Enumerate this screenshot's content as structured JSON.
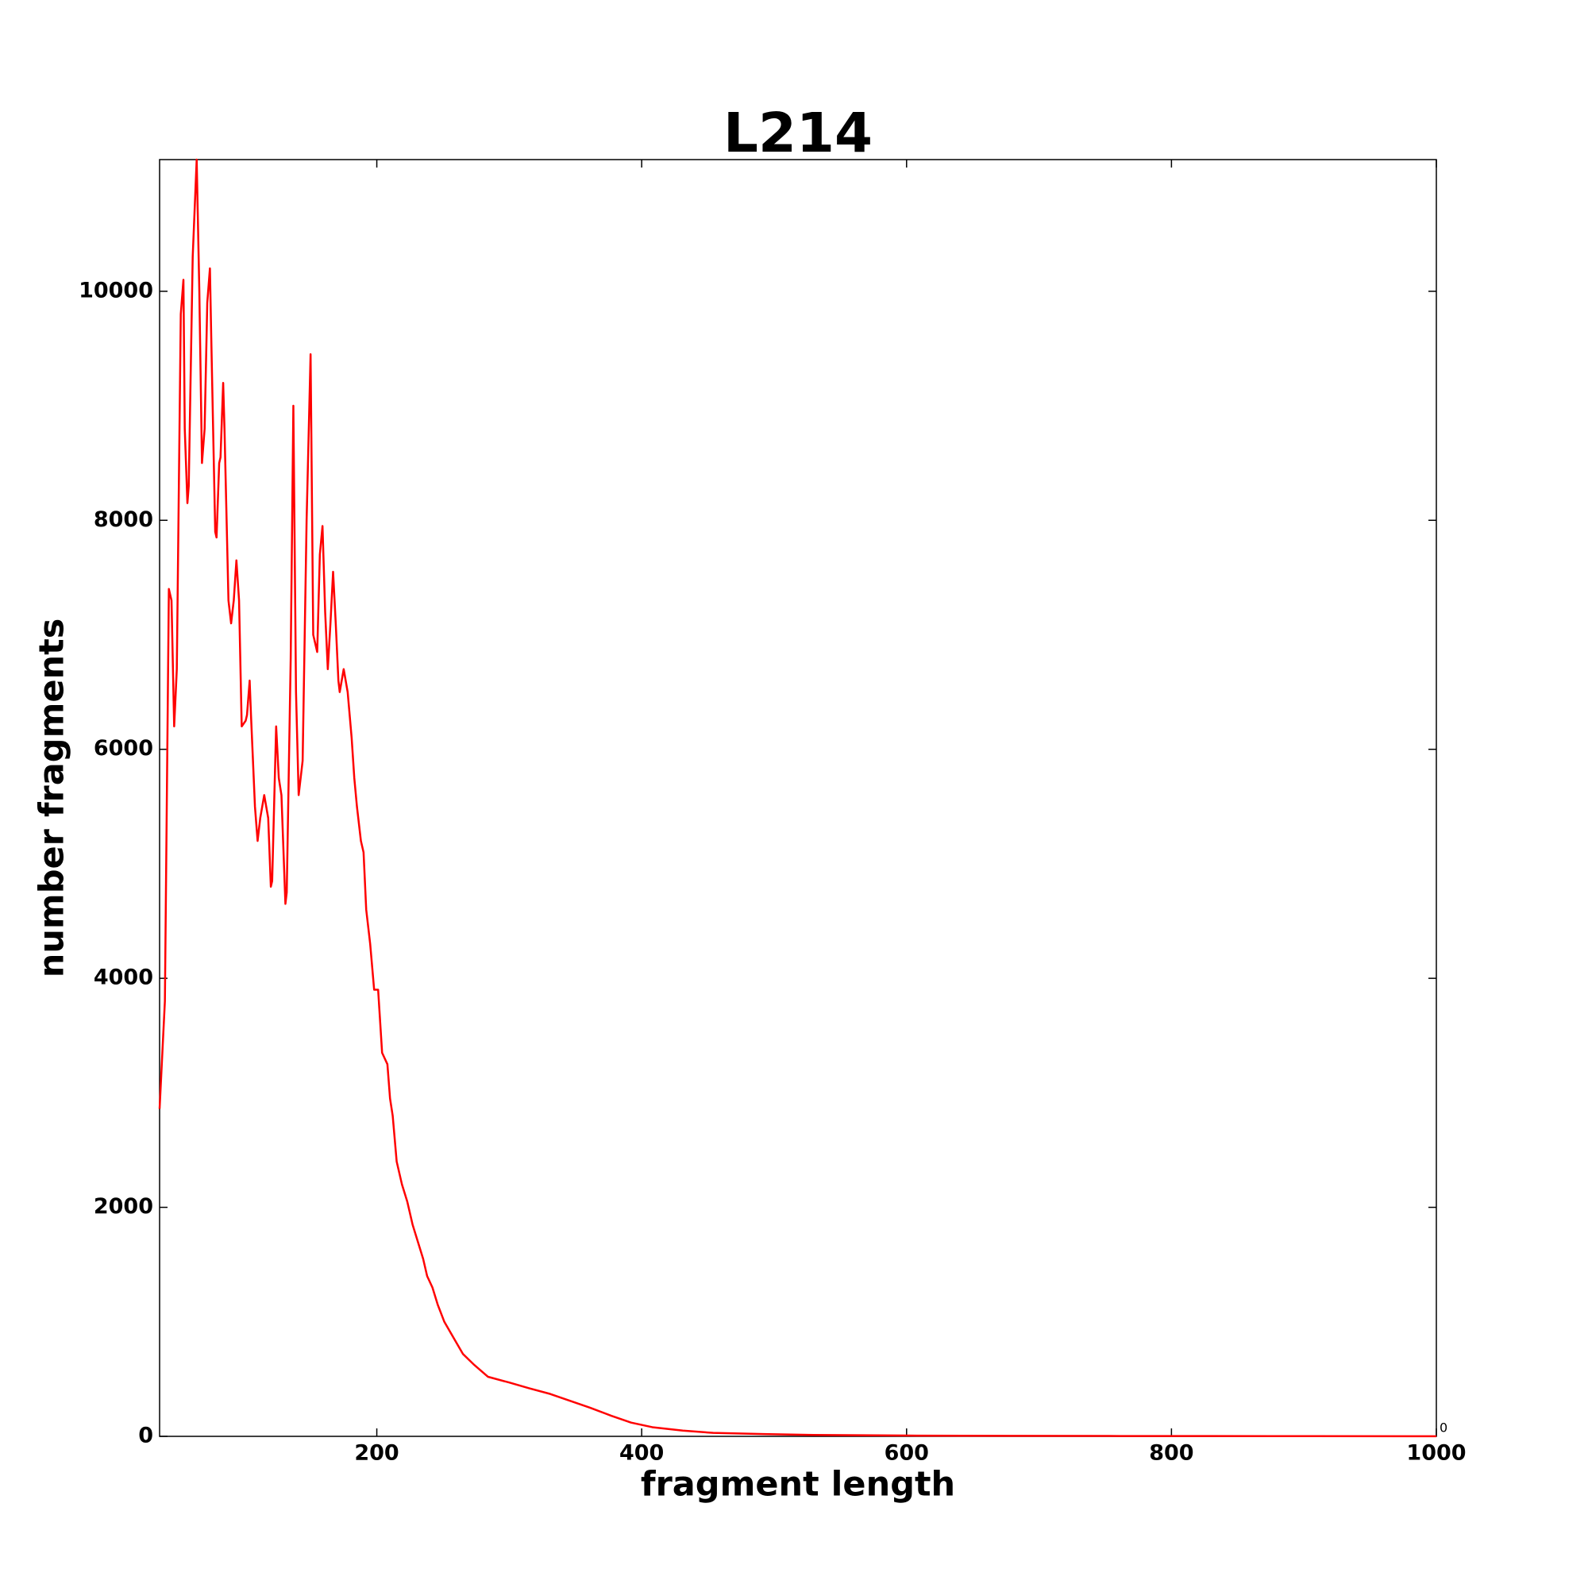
{
  "chart_data": {
    "type": "line",
    "title": "L214",
    "xlabel": "fragment length",
    "ylabel": "number fragments",
    "corner_label": "0",
    "color": "#ff0000",
    "x": [
      36,
      40,
      43,
      45,
      47,
      49,
      52,
      54,
      55,
      57,
      58,
      61,
      64,
      66,
      68,
      70,
      72,
      74,
      75,
      78,
      79,
      81,
      82,
      84,
      85,
      88,
      90,
      92,
      94,
      96,
      98,
      101,
      102,
      104,
      105,
      108,
      110,
      112,
      115,
      118,
      120,
      121,
      124,
      126,
      128,
      131,
      132,
      135,
      137,
      139,
      141,
      144,
      147,
      150,
      152,
      155,
      157,
      159,
      161,
      163,
      165,
      167,
      169,
      171,
      172,
      175,
      178,
      181,
      183,
      185,
      188,
      190,
      192,
      195,
      198,
      201,
      204,
      208,
      210,
      212,
      215,
      219,
      223,
      227,
      231,
      235,
      238,
      242,
      246,
      251,
      258,
      265,
      273,
      284,
      300,
      315,
      331,
      346,
      361,
      377,
      392,
      408,
      431,
      454,
      492,
      530,
      608,
      684,
      761,
      877,
      1000
    ],
    "values": [
      2860,
      3800,
      7400,
      7300,
      6200,
      6700,
      9800,
      10100,
      8800,
      8150,
      8300,
      10300,
      11150,
      10000,
      8500,
      8800,
      9900,
      10200,
      9600,
      7900,
      7850,
      8500,
      8550,
      9200,
      8800,
      7300,
      7100,
      7300,
      7650,
      7300,
      6200,
      6250,
      6300,
      6600,
      6300,
      5500,
      5200,
      5400,
      5600,
      5400,
      4800,
      4850,
      6200,
      5750,
      5600,
      4650,
      4750,
      6800,
      9000,
      6500,
      5600,
      5900,
      8000,
      9450,
      7000,
      6850,
      7700,
      7950,
      7200,
      6700,
      7100,
      7550,
      7100,
      6600,
      6500,
      6700,
      6500,
      6100,
      5750,
      5500,
      5200,
      5100,
      4600,
      4300,
      3900,
      3900,
      3350,
      3250,
      2950,
      2800,
      2400,
      2200,
      2050,
      1850,
      1700,
      1550,
      1400,
      1300,
      1150,
      1000,
      860,
      720,
      630,
      520,
      470,
      420,
      370,
      310,
      250,
      180,
      120,
      80,
      50,
      30,
      20,
      12,
      6,
      4,
      3,
      2,
      1
    ],
    "xlim": [
      36,
      1000
    ],
    "xticks": [
      200,
      400,
      600,
      800,
      1000
    ],
    "ylim": [
      0,
      11150
    ],
    "yticks": [
      0,
      2000,
      4000,
      6000,
      8000,
      10000
    ]
  }
}
